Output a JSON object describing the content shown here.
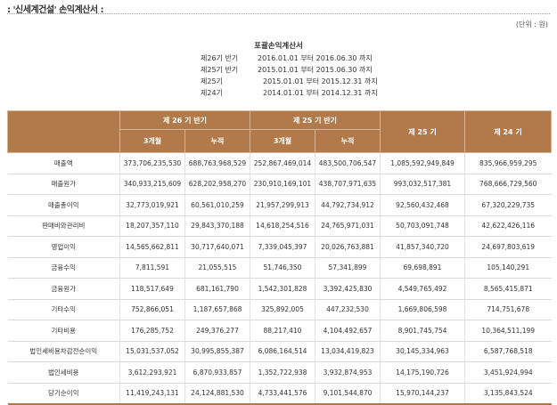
{
  "heading": ": '신세계건설' 손익계산서 :",
  "unit": "(단위 : 원)",
  "statement_title": "포괄손익계산서",
  "periods": [
    {
      "label": "제26기 반기",
      "range": "2016.01.01 부터 2016.06.30 까지"
    },
    {
      "label": "제25기 반기",
      "range": "2015.01.01 부터 2015.06.30 까지"
    },
    {
      "label": "제25기",
      "range": "2015.01.01 부터 2015.12.31 까지"
    },
    {
      "label": "제24기",
      "range": "2014.01.01 부터 2014.12.31 까지"
    }
  ],
  "table": {
    "group_headers": [
      "제 26 기 반기",
      "제 25 기 반기",
      "제 25 기",
      "제 24 기"
    ],
    "sub_headers": [
      "3개월",
      "누적",
      "3개월",
      "누적"
    ],
    "rows": [
      {
        "label": "매출액",
        "values": [
          "373,706,235,530",
          "688,763,968,529",
          "252,867,469,014",
          "483,500,706,547",
          "1,085,592,949,849",
          "835,966,959,295"
        ]
      },
      {
        "label": "매출원가",
        "values": [
          "340,933,215,609",
          "628,202,958,270",
          "230,910,169,101",
          "438,707,971,635",
          "993,032,517,381",
          "768,666,729,560"
        ]
      },
      {
        "label": "매출총이익",
        "values": [
          "32,773,019,921",
          "60,561,010,259",
          "21,957,299,913",
          "44,792,734,912",
          "92,560,432,468",
          "67,320,229,735"
        ]
      },
      {
        "label": "판매비와관리비",
        "values": [
          "18,207,357,110",
          "29,843,370,188",
          "14,618,254,516",
          "24,765,971,031",
          "50,703,091,748",
          "42,622,426,116"
        ]
      },
      {
        "label": "영업이익",
        "values": [
          "14,565,662,811",
          "30,717,640,071",
          "7,339,045,397",
          "20,026,763,881",
          "41,857,340,720",
          "24,697,803,619"
        ]
      },
      {
        "label": "금융수익",
        "values": [
          "7,811,591",
          "21,055,515",
          "51,746,350",
          "57,341,899",
          "69,698,891",
          "105,140,291"
        ]
      },
      {
        "label": "금융원가",
        "values": [
          "118,517,649",
          "681,161,790",
          "1,542,301,828",
          "3,392,425,830",
          "4,549,765,492",
          "8,565,415,871"
        ]
      },
      {
        "label": "기타수익",
        "values": [
          "752,866,051",
          "1,187,657,868",
          "325,892,005",
          "447,232,530",
          "1,669,806,598",
          "714,751,678"
        ]
      },
      {
        "label": "기타비용",
        "values": [
          "176,285,752",
          "249,376,277",
          "88,217,410",
          "4,104,492,657",
          "8,901,745,754",
          "10,364,511,199"
        ]
      },
      {
        "label": "법인세비용차감전순이익",
        "values": [
          "15,031,537,052",
          "30,995,855,387",
          "6,086,164,514",
          "13,034,419,823",
          "30,145,334,963",
          "6,587,768,518"
        ]
      },
      {
        "label": "법인세비용",
        "values": [
          "3,612,293,921",
          "6,870,933,857",
          "1,352,722,938",
          "3,932,874,953",
          "14,175,190,726",
          "3,451,924,994"
        ]
      },
      {
        "label": "당기순이익",
        "values": [
          "11,419,243,131",
          "24,124,881,530",
          "4,733,441,576",
          "9,101,544,870",
          "15,970,144,237",
          "3,135,843,524"
        ]
      }
    ]
  }
}
